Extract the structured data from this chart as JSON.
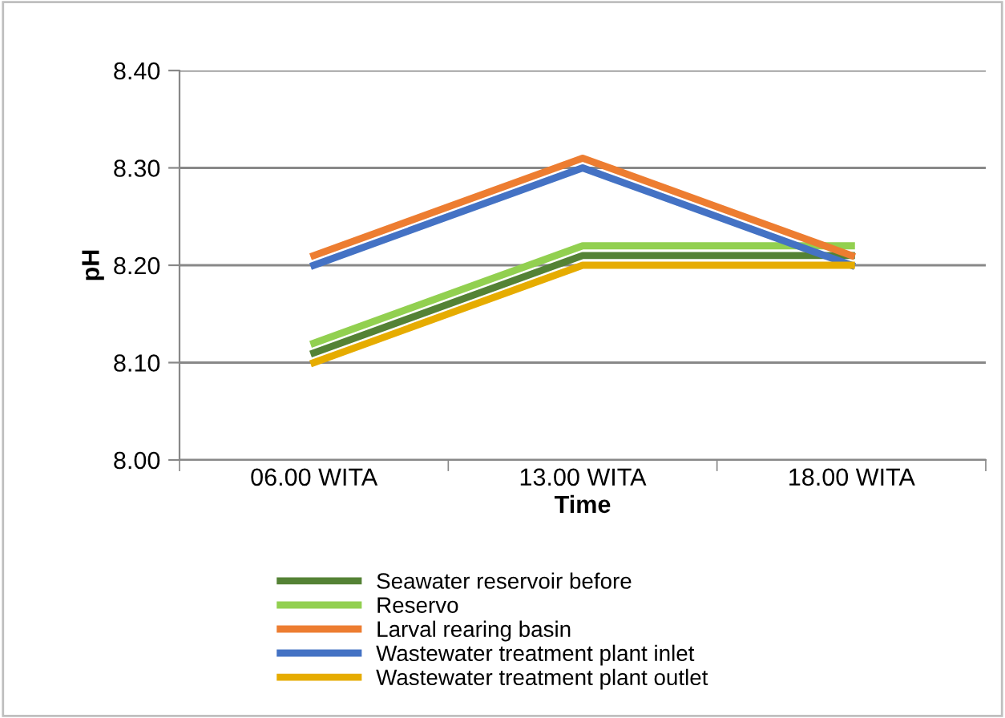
{
  "chart_data": {
    "type": "line",
    "ylabel": "pH",
    "xlabel": "Time",
    "categories": [
      "06.00 WITA",
      "13.00 WITA",
      "18.00 WITA"
    ],
    "series": [
      {
        "name": "Seawater reservoir before",
        "color": "#548235",
        "values": [
          8.11,
          8.21,
          8.21
        ]
      },
      {
        "name": "Reservo",
        "color": "#92d050",
        "values": [
          8.12,
          8.22,
          8.22
        ]
      },
      {
        "name": "Larval rearing basin",
        "color": "#ed7d31",
        "values": [
          8.21,
          8.31,
          8.21
        ]
      },
      {
        "name": "Wastewater treatment plant inlet",
        "color": "#4472c4",
        "values": [
          8.2,
          8.3,
          8.2
        ]
      },
      {
        "name": "Wastewater treatment plant outlet",
        "color": "#e6ac00",
        "values": [
          8.1,
          8.2,
          8.2
        ]
      }
    ],
    "ylim": [
      8.0,
      8.4
    ],
    "yticks": [
      {
        "value": 8.0,
        "label": "8.00"
      },
      {
        "value": 8.1,
        "label": "8.10"
      },
      {
        "value": 8.2,
        "label": "8.20"
      },
      {
        "value": 8.3,
        "label": "8.30"
      },
      {
        "value": 8.4,
        "label": "8.40"
      }
    ],
    "grid": "y",
    "legend": "bottom",
    "marker": "none",
    "line_style": "solid"
  }
}
